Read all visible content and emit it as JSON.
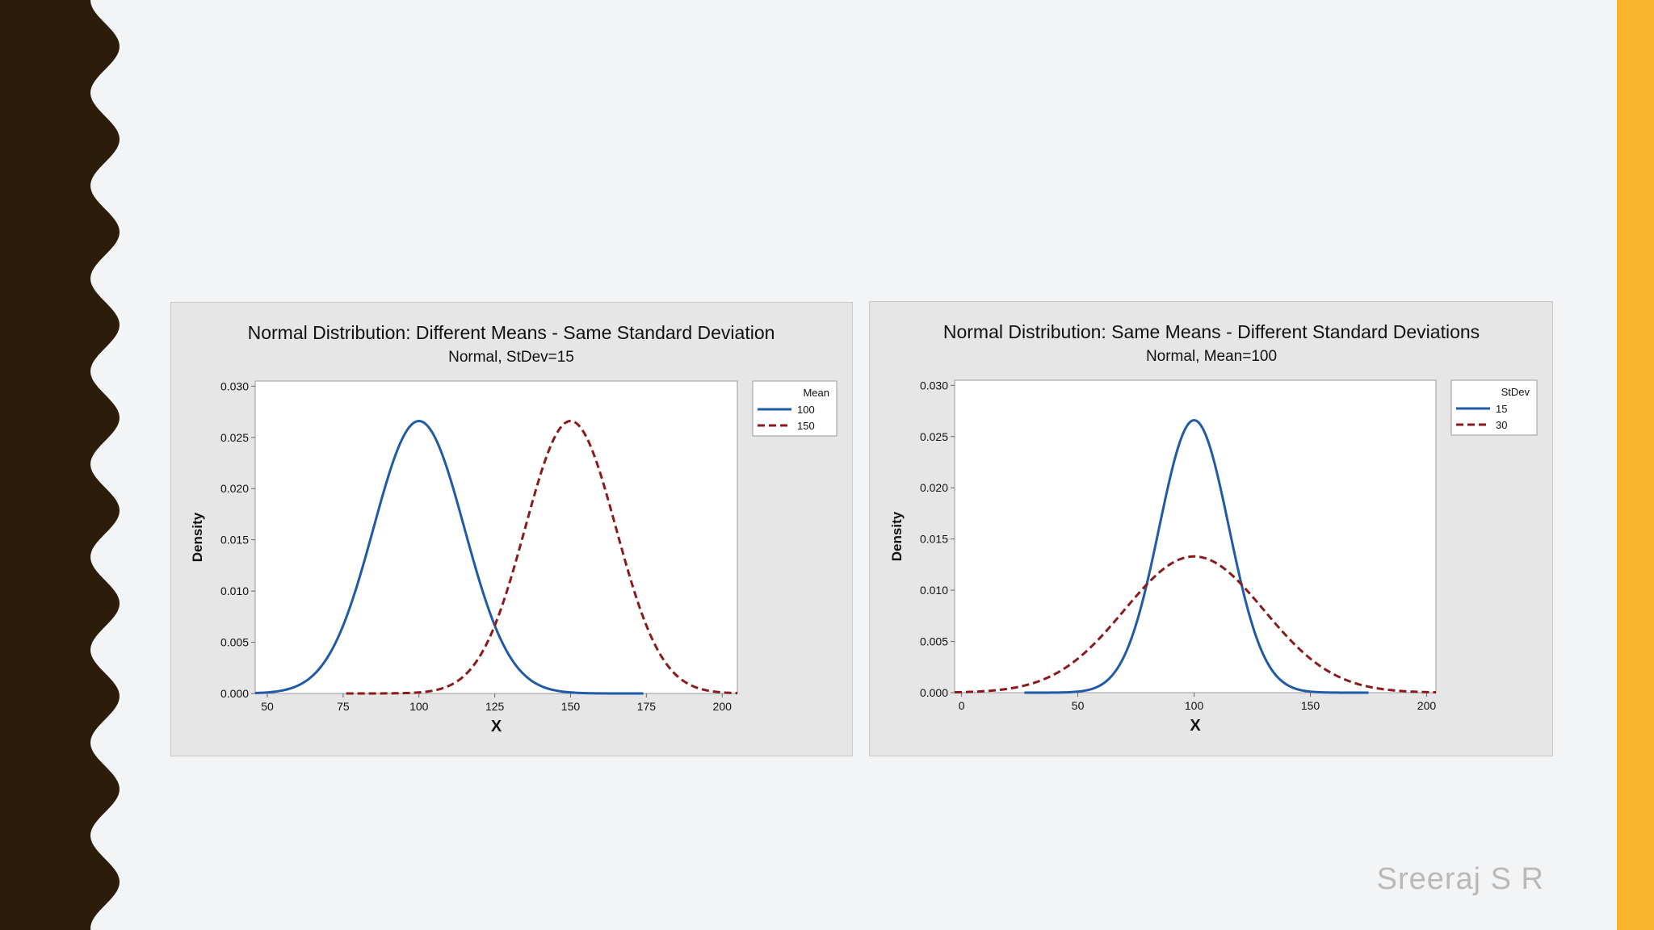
{
  "slide": {
    "author": "Sreeraj S R",
    "colors": {
      "background": "#f3f4f5",
      "left_deco": "#2b1d0a",
      "right_bar": "#f7b42c",
      "panel": "#e6e6e6",
      "series_blue": "#1f5ba7",
      "series_red": "#8b1a1a"
    }
  },
  "chart_data": [
    {
      "type": "line",
      "title": "Normal Distribution: Different Means - Same Standard Deviation",
      "subtitle": "Normal, StDev=15",
      "xlabel": "X",
      "ylabel": "Density",
      "xlim": [
        46,
        205
      ],
      "ylim": [
        0,
        0.0305
      ],
      "xticks": [
        50,
        75,
        100,
        125,
        150,
        175,
        200
      ],
      "xtick_labels": [
        "50",
        "75",
        "100",
        "125",
        "150",
        "175",
        "200"
      ],
      "yticks": [
        0,
        0.005,
        0.01,
        0.015,
        0.02,
        0.025,
        0.03
      ],
      "ytick_labels": [
        "0.000",
        "0.005",
        "0.010",
        "0.015",
        "0.020",
        "0.025",
        "0.030"
      ],
      "legend_title": "Mean",
      "legend_position": "right",
      "series": [
        {
          "name": "100",
          "dist": "normal",
          "mean": 100,
          "sd": 15,
          "x_range": [
            46,
            174
          ],
          "style": "solid",
          "color": "#1f5ba7"
        },
        {
          "name": "150",
          "dist": "normal",
          "mean": 150,
          "sd": 15,
          "x_range": [
            76,
            205
          ],
          "style": "dashed",
          "color": "#8b1a1a"
        }
      ]
    },
    {
      "type": "line",
      "title": "Normal Distribution: Same Means - Different Standard Deviations",
      "subtitle": "Normal, Mean=100",
      "xlabel": "X",
      "ylabel": "Density",
      "xlim": [
        -3,
        204
      ],
      "ylim": [
        0,
        0.0305
      ],
      "xticks": [
        0,
        50,
        100,
        150,
        200
      ],
      "xtick_labels": [
        "0",
        "50",
        "100",
        "150",
        "200"
      ],
      "yticks": [
        0,
        0.005,
        0.01,
        0.015,
        0.02,
        0.025,
        0.03
      ],
      "ytick_labels": [
        "0.000",
        "0.005",
        "0.010",
        "0.015",
        "0.020",
        "0.025",
        "0.030"
      ],
      "legend_title": "StDev",
      "legend_position": "right",
      "series": [
        {
          "name": "15",
          "dist": "normal",
          "mean": 100,
          "sd": 15,
          "x_range": [
            27,
            175
          ],
          "style": "solid",
          "color": "#1f5ba7"
        },
        {
          "name": "30",
          "dist": "normal",
          "mean": 100,
          "sd": 30,
          "x_range": [
            -3,
            204
          ],
          "style": "dashed",
          "color": "#8b1a1a"
        }
      ]
    }
  ]
}
